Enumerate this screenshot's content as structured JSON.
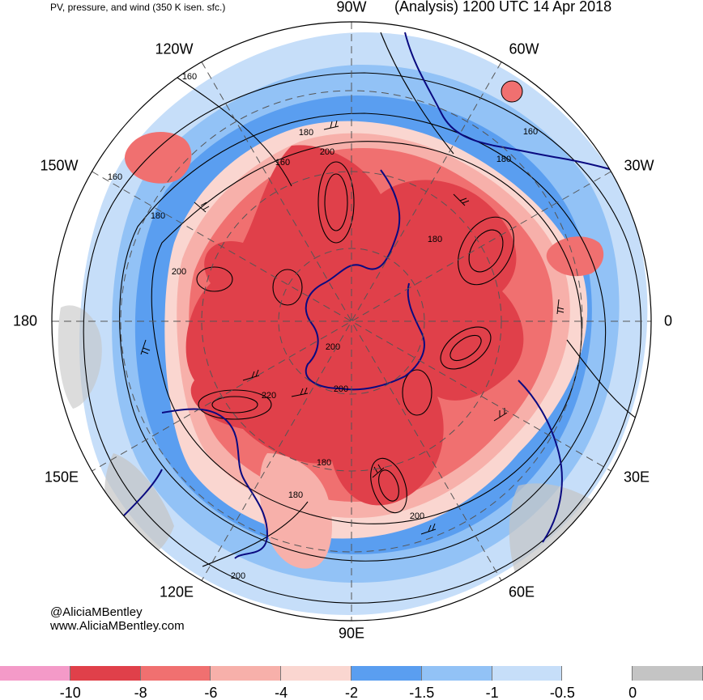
{
  "header": {
    "left_title": "PV, pressure, and wind (350 K isen. sfc.)",
    "right_title": "(Analysis) 1200 UTC 14 Apr 2018"
  },
  "longitude_labels": {
    "w90": "90W",
    "w60": "60W",
    "w30": "30W",
    "zero": "0",
    "e30": "30E",
    "e60": "60E",
    "e90": "90E",
    "e120": "120E",
    "e150": "150E",
    "d180": "180",
    "w150": "150W",
    "w120": "120W"
  },
  "contour_labels": {
    "c1": "160",
    "c2": "180",
    "c3": "200",
    "c4": "160",
    "c5": "160",
    "c6": "180",
    "c7": "180",
    "c8": "160",
    "c9": "180",
    "c10": "200",
    "c11": "200",
    "c12": "220",
    "c13": "200",
    "c14": "180",
    "c15": "180",
    "c16": "200",
    "c17": "200",
    "c18": "180",
    "c19": "200"
  },
  "credits": {
    "twitter": "@AliciaMBentley",
    "website": "www.AliciaMBentley.com"
  },
  "colorbar": {
    "colors": [
      "#f49ac8",
      "#e0404a",
      "#f07070",
      "#f7b0aa",
      "#fad6d0",
      "#5a9ef0",
      "#92c2f6",
      "#c6def9",
      "#ffffff",
      "#c4c4c4"
    ],
    "tick_labels": [
      "-10",
      "-8",
      "-6",
      "-4",
      "-2",
      "-1.5",
      "-1",
      "-0.5",
      "0"
    ]
  }
}
